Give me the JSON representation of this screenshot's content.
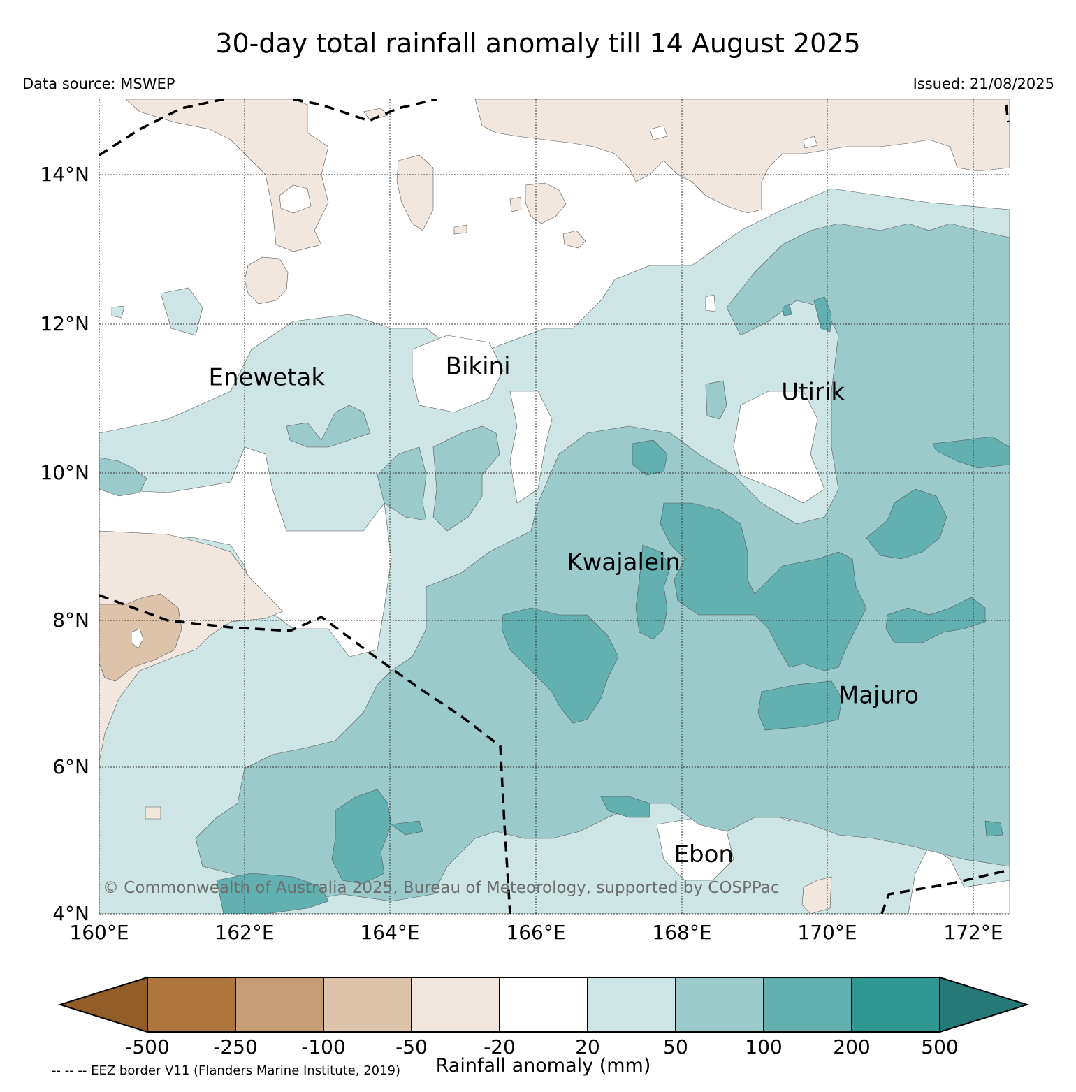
{
  "title": "30-day total rainfall anomaly till 14 August 2025",
  "source": "Data source: MSWEP",
  "issued": "Issued: 21/08/2025",
  "copyright": "© Commonwealth of Australia 2025, Bureau of Meteorology, supported by COSPPac",
  "eez_note": "-- -- -- EEZ border V11 (Flanders Marine Institute, 2019)",
  "lat_ticks": [
    "14°N",
    "12°N",
    "10°N",
    "8°N",
    "6°N",
    "4°N"
  ],
  "lon_ticks": [
    "160°E",
    "162°E",
    "164°E",
    "166°E",
    "168°E",
    "170°E",
    "172°E"
  ],
  "places": [
    {
      "name": "Enewetak",
      "lon": 162.3,
      "lat": 11.15
    },
    {
      "name": "Bikini",
      "lon": 165.2,
      "lat": 11.3
    },
    {
      "name": "Utirik",
      "lon": 169.8,
      "lat": 10.95
    },
    {
      "name": "Kwajalein",
      "lon": 167.2,
      "lat": 8.65
    },
    {
      "name": "Majuro",
      "lon": 170.7,
      "lat": 6.85
    },
    {
      "name": "Ebon",
      "lon": 168.3,
      "lat": 4.7
    }
  ],
  "colorbar": {
    "label": "Rainfall anomaly (mm)",
    "ticks": [
      "-500",
      "-250",
      "-100",
      "-50",
      "-20",
      "20",
      "50",
      "100",
      "200",
      "500"
    ],
    "colors": [
      "#935d2a",
      "#ae763d",
      "#c49d74",
      "#dcc3a9",
      "#f1e7de",
      "#ffffff",
      "#cde5e4",
      "#9bcacb",
      "#62b0af",
      "#2f9792",
      "#257977"
    ]
  }
}
